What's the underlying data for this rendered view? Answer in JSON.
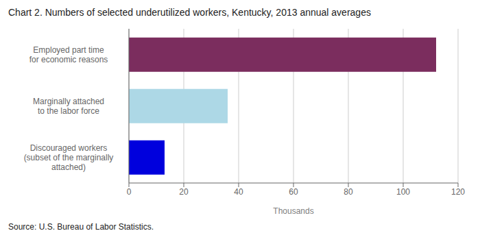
{
  "chart_data": {
    "type": "bar",
    "title": "Chart 2.  Numbers of selected underutilized workers, Kentucky, 2013 annual averages",
    "categories": [
      "Discouraged workers\n(subset of the marginally\nattached)",
      "Marginally attached\nto the labor force",
      "Employed part time\nfor economic reasons"
    ],
    "values": [
      13,
      36,
      112
    ],
    "colors": [
      "#0000dd",
      "#add8e6",
      "#7b2d5e"
    ],
    "orientation": "horizontal",
    "xlabel": "Thousands",
    "xlim": [
      0,
      120
    ],
    "xticks": [
      0,
      20,
      40,
      60,
      80,
      100,
      120
    ],
    "grid": true,
    "source": "Source: U.S. Bureau of Labor Statistics."
  }
}
